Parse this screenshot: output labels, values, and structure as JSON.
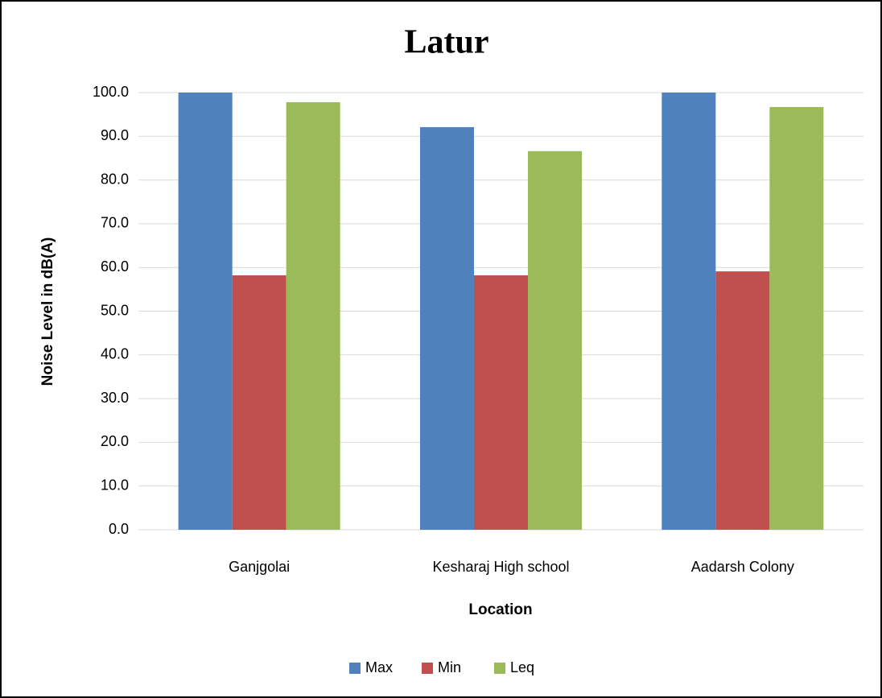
{
  "chart_data": {
    "type": "bar",
    "title": "Latur",
    "x_label": "Location",
    "y_label": "Noise Level in dB(A)",
    "categories": [
      "Ganjgolai",
      "Kesharaj High school",
      "Aadarsh Colony"
    ],
    "series": [
      {
        "name": "Max",
        "color": "#4f81bd",
        "values": [
          100,
          92.1,
          100
        ]
      },
      {
        "name": "Min",
        "color": "#c0504d",
        "values": [
          58.2,
          58.2,
          59.1
        ]
      },
      {
        "name": "Leq",
        "color": "#9bbb59",
        "values": [
          97.8,
          86.6,
          96.7
        ]
      }
    ],
    "ylim": [
      0,
      100
    ],
    "yticks": [
      {
        "value": 0,
        "label": "0.0"
      },
      {
        "value": 10,
        "label": "10.0"
      },
      {
        "value": 20,
        "label": "20.0"
      },
      {
        "value": 30,
        "label": "30.0"
      },
      {
        "value": 40,
        "label": "40.0"
      },
      {
        "value": 50,
        "label": "50.0"
      },
      {
        "value": 60,
        "label": "60.0"
      },
      {
        "value": 70,
        "label": "70.0"
      },
      {
        "value": 80,
        "label": "80.0"
      },
      {
        "value": 90,
        "label": "90.0"
      },
      {
        "value": 100,
        "label": "100.0"
      }
    ],
    "grid": true,
    "legend": "bottom"
  }
}
